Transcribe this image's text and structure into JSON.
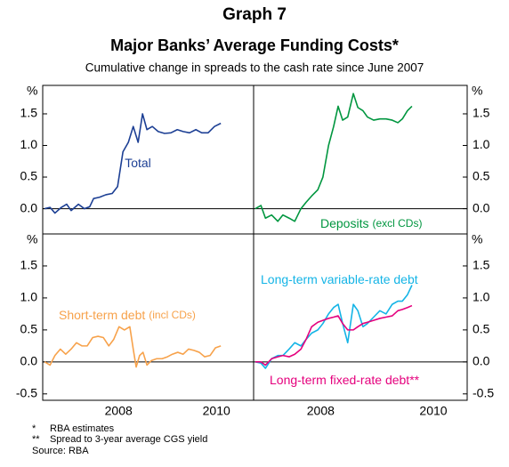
{
  "title": "Graph 7",
  "heading": "Major Banks’ Average Funding Costs*",
  "subtitle": "Cumulative change in spreads to the cash rate since June 2007",
  "footnotes": [
    [
      "*",
      "RBA estimates"
    ],
    [
      "**",
      "Spread to 3-year average CGS yield"
    ]
  ],
  "source": "Source: RBA",
  "chart_data": [
    {
      "type": "line",
      "y_unit": "%",
      "y_axis_side": "left",
      "zero_line": true,
      "xlim": [
        2006.45,
        2010.76
      ],
      "ylim": [
        -0.4,
        1.95
      ],
      "yticks": [
        {
          "value": 0,
          "label": "0.0"
        },
        0.5,
        {
          "value": 1,
          "label": "1.0"
        },
        1.5
      ],
      "x": [
        2006.49,
        2006.6,
        2006.7,
        2006.83,
        2006.94,
        2007.03,
        2007.18,
        2007.3,
        2007.41,
        2007.49,
        2007.61,
        2007.74,
        2007.87,
        2007.98,
        2008.09,
        2008.2,
        2008.3,
        2008.4,
        2008.49,
        2008.58,
        2008.69,
        2008.81,
        2008.94,
        2009.07,
        2009.2,
        2009.32,
        2009.45,
        2009.58,
        2009.7,
        2009.83,
        2009.96,
        2010.09
      ],
      "series": [
        {
          "name": "Total",
          "color": "#1c3f94",
          "values": [
            0,
            0.02,
            -0.07,
            0.02,
            0.07,
            -0.03,
            0.07,
            0,
            0.03,
            0.16,
            0.18,
            0.22,
            0.24,
            0.35,
            0.9,
            1.05,
            1.3,
            1.05,
            1.5,
            1.25,
            1.3,
            1.22,
            1.19,
            1.2,
            1.25,
            1.22,
            1.2,
            1.25,
            1.2,
            1.2,
            1.3,
            1.35
          ]
        }
      ]
    },
    {
      "type": "line",
      "y_unit": "%",
      "y_axis_side": "right",
      "zero_line": true,
      "xlim": [
        2006.81,
        2010.6
      ],
      "ylim": [
        -0.4,
        1.95
      ],
      "yticks": [
        {
          "value": 0,
          "label": "0.0"
        },
        0.5,
        {
          "value": 1,
          "label": "1.0"
        },
        1.5
      ],
      "x": [
        2006.84,
        2006.94,
        2007.02,
        2007.13,
        2007.24,
        2007.33,
        2007.44,
        2007.54,
        2007.65,
        2007.74,
        2007.84,
        2007.95,
        2008.04,
        2008.14,
        2008.23,
        2008.31,
        2008.39,
        2008.48,
        2008.58,
        2008.66,
        2008.75,
        2008.83,
        2008.94,
        2009.05,
        2009.16,
        2009.27,
        2009.37,
        2009.45,
        2009.54,
        2009.62
      ],
      "series": [
        {
          "name": "Deposits",
          "note": "(excl CDs)",
          "color": "#00963f",
          "values": [
            0,
            0.05,
            -0.15,
            -0.1,
            -0.2,
            -0.1,
            -0.15,
            -0.2,
            0,
            0.1,
            0.2,
            0.3,
            0.5,
            1,
            1.3,
            1.62,
            1.4,
            1.45,
            1.82,
            1.6,
            1.55,
            1.45,
            1.4,
            1.42,
            1.42,
            1.4,
            1.36,
            1.42,
            1.55,
            1.62
          ]
        }
      ]
    },
    {
      "type": "line",
      "y_unit": "%",
      "y_axis_side": "left",
      "zero_line": true,
      "xlim": [
        2006.45,
        2010.76
      ],
      "ylim": [
        -0.6,
        2.0
      ],
      "xticks": [
        2008,
        2010
      ],
      "yticks": [
        {
          "value": -0.5,
          "label": "-0.5"
        },
        {
          "value": 0,
          "label": "0.0"
        },
        0.5,
        {
          "value": 1,
          "label": "1.0"
        },
        1.5
      ],
      "x": [
        2006.49,
        2006.6,
        2006.7,
        2006.81,
        2006.92,
        2007.03,
        2007.14,
        2007.25,
        2007.36,
        2007.47,
        2007.58,
        2007.69,
        2007.8,
        2007.9,
        2008.01,
        2008.12,
        2008.23,
        2008.3,
        2008.36,
        2008.43,
        2008.5,
        2008.58,
        2008.67,
        2008.78,
        2008.89,
        2009,
        2009.1,
        2009.21,
        2009.32,
        2009.43,
        2009.54,
        2009.65,
        2009.76,
        2009.87,
        2009.98,
        2010.09
      ],
      "series": [
        {
          "name": "Short-term debt",
          "note": "(incl CDs)",
          "color": "#f7a24b",
          "values": [
            0,
            -0.05,
            0.1,
            0.2,
            0.12,
            0.2,
            0.3,
            0.25,
            0.25,
            0.38,
            0.4,
            0.38,
            0.25,
            0.35,
            0.55,
            0.5,
            0.55,
            0.2,
            -0.08,
            0.1,
            0.15,
            -0.05,
            0.02,
            0.05,
            0.05,
            0.08,
            0.12,
            0.15,
            0.12,
            0.2,
            0.18,
            0.15,
            0.08,
            0.1,
            0.22,
            0.25
          ]
        }
      ]
    },
    {
      "type": "line",
      "y_unit": "%",
      "y_axis_side": "right",
      "zero_line": true,
      "xlim": [
        2006.81,
        2010.6
      ],
      "ylim": [
        -0.6,
        2.0
      ],
      "xticks": [
        2008,
        2010
      ],
      "yticks": [
        {
          "value": -0.5,
          "label": "-0.5"
        },
        {
          "value": 0,
          "label": "0.0"
        },
        0.5,
        {
          "value": 1,
          "label": "1.0"
        },
        1.5
      ],
      "x": [
        2006.84,
        2006.94,
        2007.02,
        2007.13,
        2007.24,
        2007.33,
        2007.44,
        2007.54,
        2007.65,
        2007.74,
        2007.84,
        2007.95,
        2008.04,
        2008.14,
        2008.23,
        2008.31,
        2008.39,
        2008.48,
        2008.58,
        2008.66,
        2008.75,
        2008.83,
        2008.94,
        2009.05,
        2009.16,
        2009.27,
        2009.37,
        2009.45,
        2009.54,
        2009.62
      ],
      "series": [
        {
          "name": "Long-term variable-rate debt",
          "color": "#14b4e6",
          "values": [
            0,
            -0.02,
            -0.1,
            0.05,
            0.1,
            0.1,
            0.2,
            0.3,
            0.25,
            0.35,
            0.45,
            0.5,
            0.6,
            0.75,
            0.85,
            0.9,
            0.6,
            0.3,
            0.9,
            0.8,
            0.55,
            0.6,
            0.7,
            0.8,
            0.75,
            0.9,
            0.95,
            0.95,
            1.05,
            1.2
          ]
        },
        {
          "name": "Long-term fixed-rate debt**",
          "color": "#e5007d",
          "values": [
            0,
            0,
            -0.05,
            0.05,
            0.08,
            0.1,
            0.08,
            0.12,
            0.2,
            0.35,
            0.55,
            0.62,
            0.65,
            0.68,
            0.7,
            0.72,
            0.6,
            0.5,
            0.5,
            0.55,
            0.6,
            0.62,
            0.65,
            0.68,
            0.7,
            0.72,
            0.8,
            0.82,
            0.85,
            0.88
          ]
        }
      ]
    }
  ]
}
